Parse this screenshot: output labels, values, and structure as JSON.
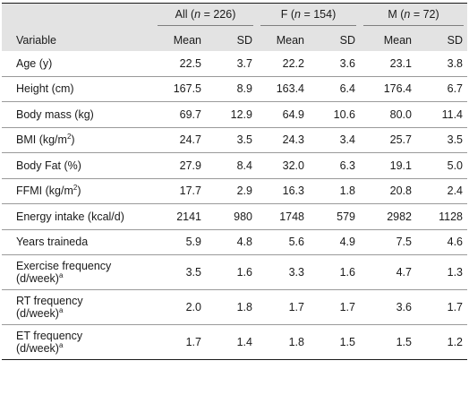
{
  "groups": [
    {
      "label": "All (n = 226)",
      "prefix": "All (",
      "n_label": "n",
      "suffix": " = 226)"
    },
    {
      "label": "F (n = 154)",
      "prefix": "F (",
      "n_label": "n",
      "suffix": " = 154)"
    },
    {
      "label": "M (n = 72)",
      "prefix": "M (",
      "n_label": "n",
      "suffix": " = 72)"
    }
  ],
  "header": {
    "variable": "Variable",
    "mean": "Mean",
    "sd": "SD"
  },
  "rows": [
    {
      "label": "Age (y)",
      "values": [
        "22.5",
        "3.7",
        "22.2",
        "3.6",
        "23.1",
        "3.8"
      ]
    },
    {
      "label": "Height (cm)",
      "values": [
        "167.5",
        "8.9",
        "163.4",
        "6.4",
        "176.4",
        "6.7"
      ]
    },
    {
      "label": "Body mass (kg)",
      "values": [
        "69.7",
        "12.9",
        "64.9",
        "10.6",
        "80.0",
        "11.4"
      ]
    },
    {
      "label": "BMI (kg/m2)",
      "label_main": "BMI (kg/m",
      "label_sup": "2",
      "label_tail": ")",
      "values": [
        "24.7",
        "3.5",
        "24.3",
        "3.4",
        "25.7",
        "3.5"
      ]
    },
    {
      "label": "Body Fat (%)",
      "values": [
        "27.9",
        "8.4",
        "32.0",
        "6.3",
        "19.1",
        "5.0"
      ]
    },
    {
      "label": "FFMI (kg/m2)",
      "label_main": "FFMI (kg/m",
      "label_sup": "2",
      "label_tail": ")",
      "values": [
        "17.7",
        "2.9",
        "16.3",
        "1.8",
        "20.8",
        "2.4"
      ]
    },
    {
      "label": "Energy intake (kcal/d)",
      "values": [
        "2141",
        "980",
        "1748",
        "579",
        "2982",
        "1128"
      ]
    },
    {
      "label": "Years traineda",
      "values": [
        "5.9",
        "4.8",
        "5.6",
        "4.9",
        "7.5",
        "4.6"
      ]
    },
    {
      "label_line1": "Exercise frequency",
      "label_line2": "(d/week)",
      "label_sup": "a",
      "values": [
        "3.5",
        "1.6",
        "3.3",
        "1.6",
        "4.7",
        "1.3"
      ]
    },
    {
      "label_line1": "RT frequency",
      "label_line2": "(d/week)",
      "label_sup": "a",
      "values": [
        "2.0",
        "1.8",
        "1.7",
        "1.7",
        "3.6",
        "1.7"
      ]
    },
    {
      "label_line1": "ET frequency",
      "label_line2": "(d/week)",
      "label_sup": "a",
      "values": [
        "1.7",
        "1.4",
        "1.8",
        "1.5",
        "1.5",
        "1.2"
      ]
    }
  ]
}
